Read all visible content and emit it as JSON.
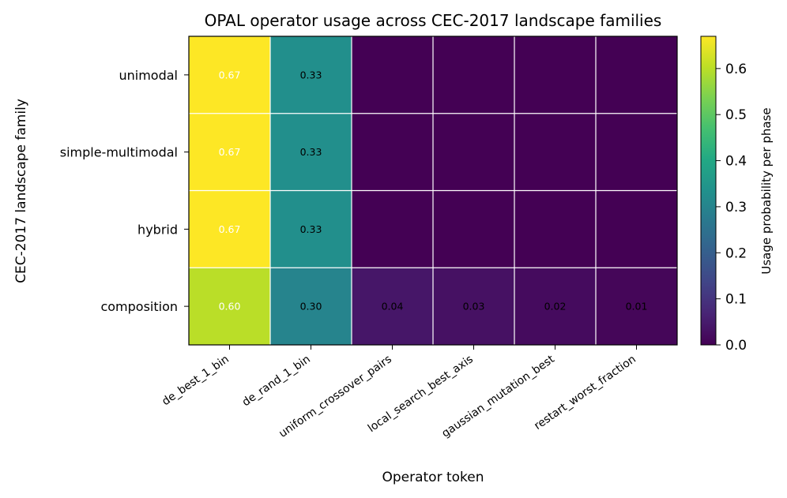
{
  "chart_data": {
    "type": "heatmap",
    "title": "OPAL operator usage across CEC-2017 landscape families",
    "xlabel": "Operator token",
    "ylabel": "CEC-2017 landscape family",
    "x_categories": [
      "de_best_1_bin",
      "de_rand_1_bin",
      "uniform_crossover_pairs",
      "local_search_best_axis",
      "gaussian_mutation_best",
      "restart_worst_fraction"
    ],
    "y_categories": [
      "unimodal",
      "simple-multimodal",
      "hybrid",
      "composition"
    ],
    "values": [
      [
        0.67,
        0.33,
        0.0,
        0.0,
        0.0,
        0.0
      ],
      [
        0.67,
        0.33,
        0.0,
        0.0,
        0.0,
        0.0
      ],
      [
        0.67,
        0.33,
        0.0,
        0.0,
        0.0,
        0.0
      ],
      [
        0.6,
        0.3,
        0.04,
        0.03,
        0.02,
        0.01
      ]
    ],
    "cell_labels": [
      [
        "0.67",
        "0.33",
        "",
        "",
        "",
        ""
      ],
      [
        "0.67",
        "0.33",
        "",
        "",
        "",
        ""
      ],
      [
        "0.67",
        "0.33",
        "",
        "",
        "",
        ""
      ],
      [
        "0.60",
        "0.30",
        "0.04",
        "0.03",
        "0.02",
        "0.01"
      ]
    ],
    "colormap": "viridis",
    "vmin": 0.0,
    "vmax": 0.67,
    "colorbar": {
      "label": "Usage probability per phase",
      "ticks": [
        0.0,
        0.1,
        0.2,
        0.3,
        0.4,
        0.5,
        0.6
      ],
      "tick_labels": [
        "0.0",
        "0.1",
        "0.2",
        "0.3",
        "0.4",
        "0.5",
        "0.6"
      ]
    },
    "label_colors": {
      "light": "#ffffff",
      "dark": "#000000"
    },
    "grid_color": "#ffffff"
  }
}
